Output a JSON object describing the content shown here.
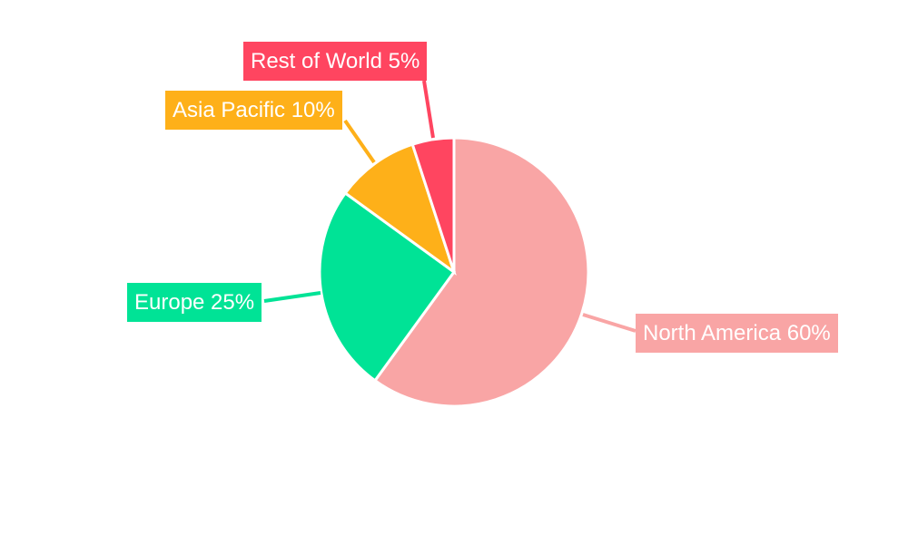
{
  "chart_data": {
    "type": "pie",
    "start_angle": "12 o'clock, clockwise",
    "slices": [
      {
        "label": "North America 60%",
        "name": "North America",
        "value": 60,
        "color": "#F9A5A5"
      },
      {
        "label": "Europe 25%",
        "name": "Europe",
        "value": 25,
        "color": "#00E396"
      },
      {
        "label": "Asia Pacific 10%",
        "name": "Asia Pacific",
        "value": 10,
        "color": "#FEB019"
      },
      {
        "label": "Rest of World 5%",
        "name": "Rest of World",
        "value": 5,
        "color": "#FF4560"
      }
    ],
    "legend": "none",
    "data_labels": "outside with leader lines"
  }
}
